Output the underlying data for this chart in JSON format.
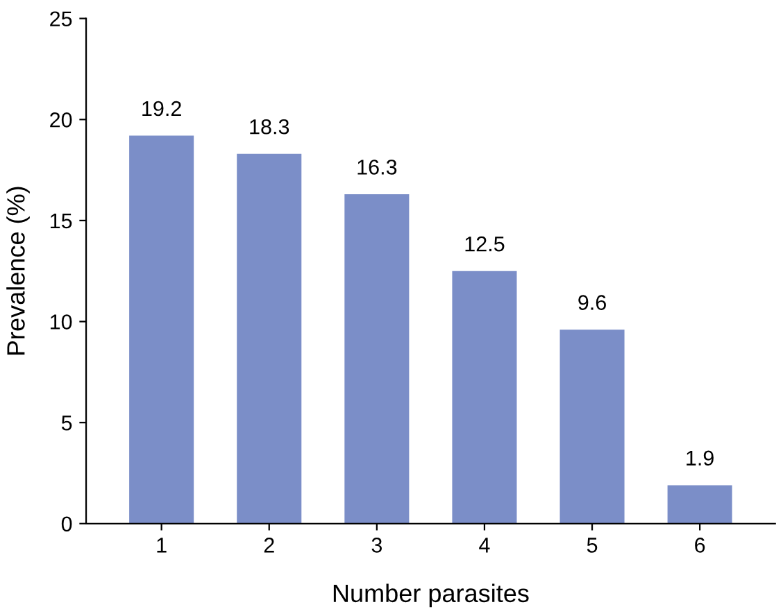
{
  "chart_data": {
    "type": "bar",
    "xlabel": "Number parasites",
    "ylabel": "Prevalence (%)",
    "categories": [
      "1",
      "2",
      "3",
      "4",
      "5",
      "6"
    ],
    "values": [
      19.2,
      18.3,
      16.3,
      12.5,
      9.6,
      1.9
    ],
    "color": "#7b8ec8",
    "ylim": [
      0,
      25
    ],
    "yticks": [
      0,
      5,
      10,
      15,
      20,
      25
    ],
    "data_labels": true,
    "grid": false,
    "legend": false
  }
}
